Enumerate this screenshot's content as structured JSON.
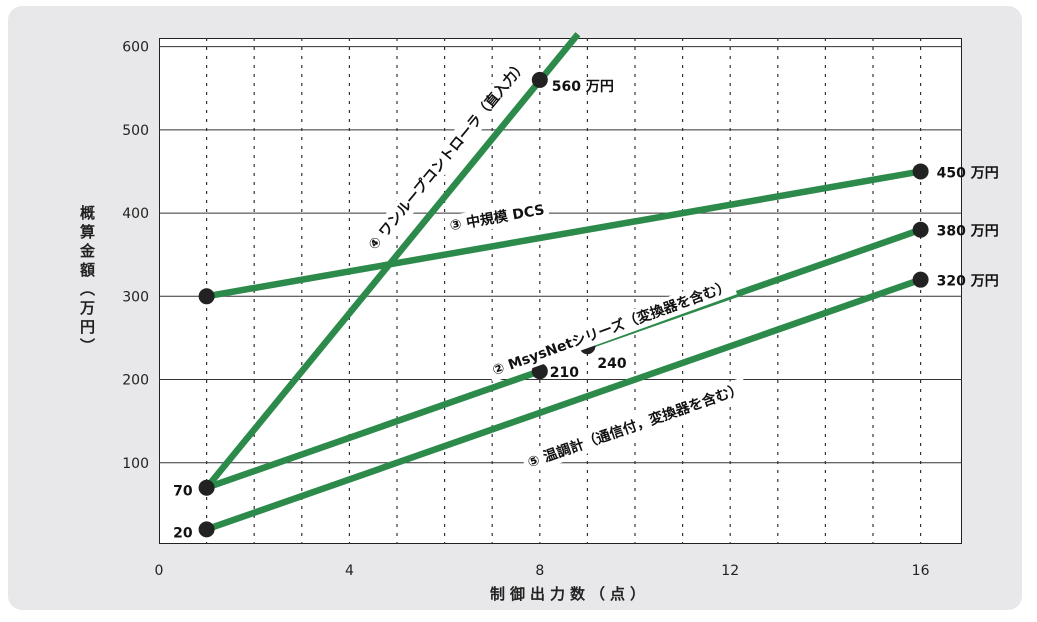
{
  "chart_data": {
    "type": "line",
    "xlabel": "制御出力数（点）",
    "ylabel": "概算金額（万円）",
    "xlim": [
      0,
      21
    ],
    "ylim": [
      0,
      610
    ],
    "xticks": [
      0,
      4,
      8,
      12,
      16
    ],
    "yticks": [
      100,
      200,
      300,
      400,
      500,
      600
    ],
    "grid": true,
    "line_color": "#2c8a4a",
    "series": [
      {
        "name": "④ ワンループコントローラ（直入力）",
        "points": [
          [
            1,
            70
          ],
          [
            8,
            560
          ]
        ],
        "extend_to": [
          8.8,
          615
        ],
        "point_labels": [
          "70",
          "560 万円"
        ]
      },
      {
        "name": "③ 中規模 DCS",
        "points": [
          [
            1,
            300
          ],
          [
            16,
            450
          ]
        ],
        "point_labels": [
          "",
          "450 万円"
        ]
      },
      {
        "name": "② MsysNetシリーズ（変換器を含む）",
        "points": [
          [
            1,
            70
          ],
          [
            8,
            210
          ]
        ],
        "point_labels": [
          "",
          "210"
        ]
      },
      {
        "name": "",
        "points": [
          [
            9,
            240
          ],
          [
            16,
            380
          ]
        ],
        "point_labels": [
          "240",
          "380 万円"
        ]
      },
      {
        "name": "⑤ 温調計（通信付，変換器を含む）",
        "points": [
          [
            1,
            20
          ],
          [
            16,
            320
          ]
        ],
        "point_labels": [
          "20",
          "320 万円"
        ]
      }
    ]
  }
}
